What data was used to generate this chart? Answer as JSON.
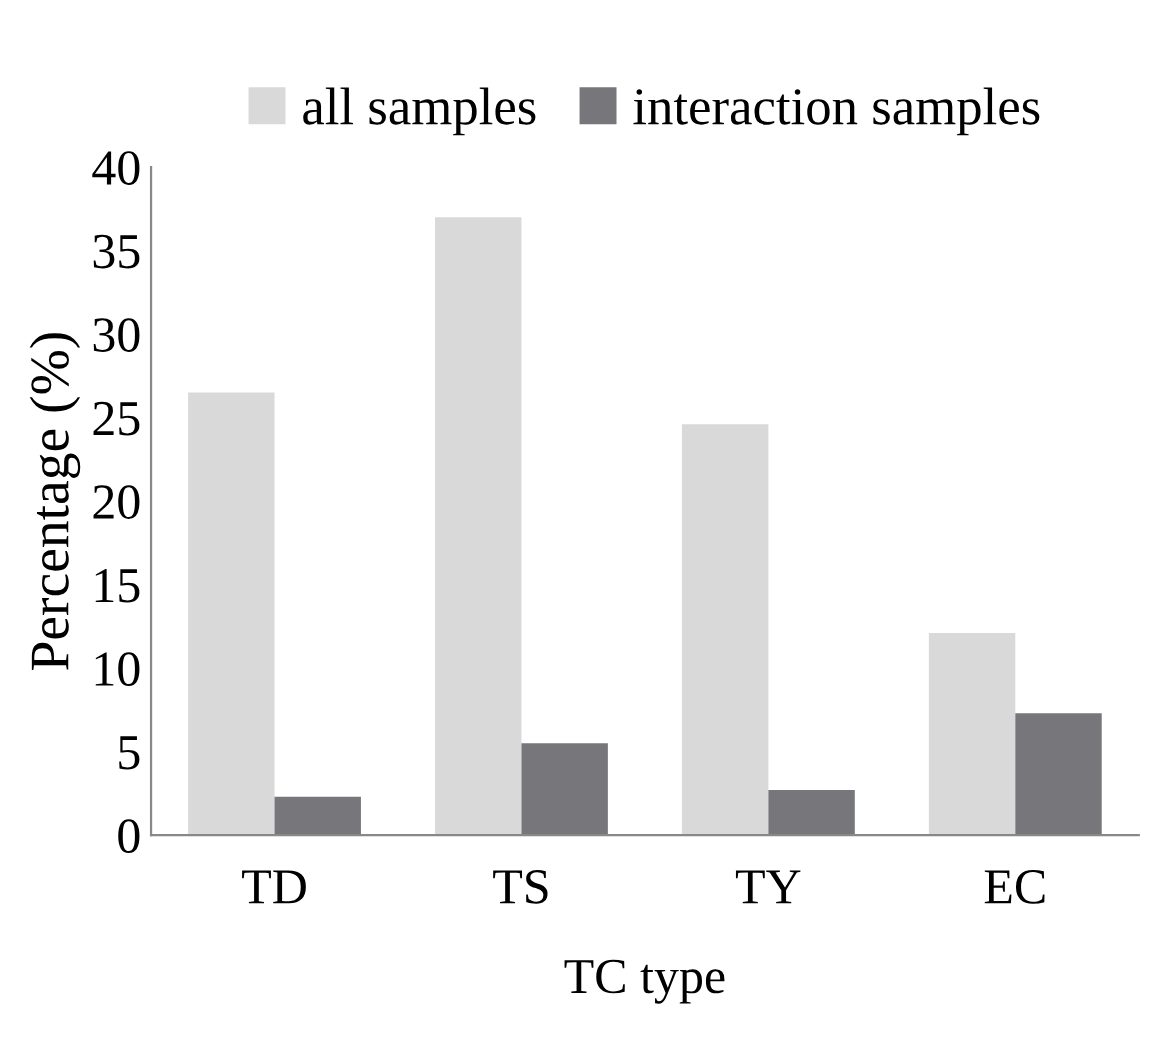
{
  "chart_data": {
    "type": "bar",
    "xlabel": "TC type",
    "ylabel": "Percentage (%)",
    "categories": [
      "TD",
      "TS",
      "TY",
      "EC"
    ],
    "series": [
      {
        "name": "all samples",
        "color": "#d9d9d9",
        "values": [
          26.5,
          37.0,
          24.6,
          12.1
        ]
      },
      {
        "name": "interaction samples",
        "color": "#77777b",
        "values": [
          2.3,
          5.5,
          2.7,
          7.3
        ]
      }
    ],
    "ylim": [
      0,
      40
    ],
    "yticks": [
      0,
      5,
      10,
      15,
      20,
      25,
      30,
      35,
      40
    ],
    "grid": false,
    "legend": "top"
  }
}
